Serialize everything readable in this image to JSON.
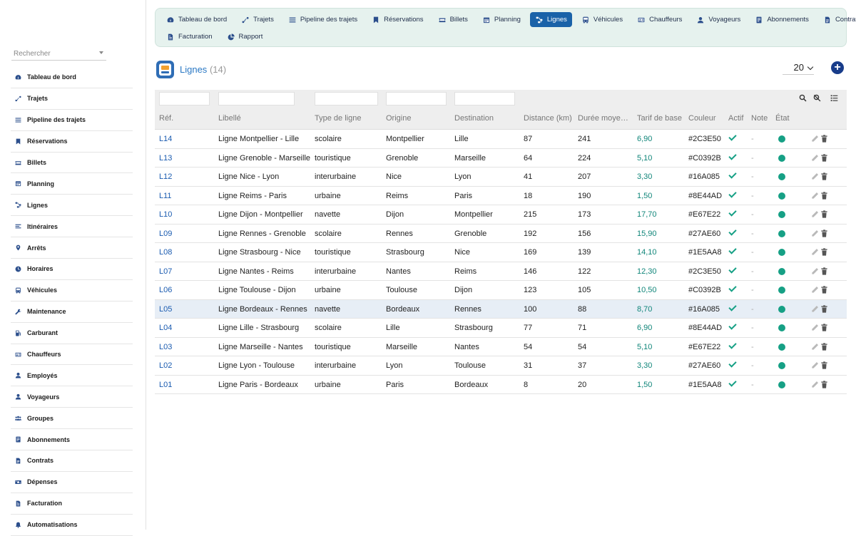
{
  "sidebar": {
    "search_placeholder": "Rechercher",
    "items": [
      {
        "label": "Tableau de bord",
        "icon": "dashboard-icon"
      },
      {
        "label": "Trajets",
        "icon": "route-icon"
      },
      {
        "label": "Pipeline des trajets",
        "icon": "pipeline-icon"
      },
      {
        "label": "Réservations",
        "icon": "bookmark-icon"
      },
      {
        "label": "Billets",
        "icon": "ticket-icon"
      },
      {
        "label": "Planning",
        "icon": "calendar-icon"
      },
      {
        "label": "Lignes",
        "icon": "lines-icon"
      },
      {
        "label": "Itinéraires",
        "icon": "itinerary-icon"
      },
      {
        "label": "Arrêts",
        "icon": "pin-icon"
      },
      {
        "label": "Horaires",
        "icon": "clock-icon"
      },
      {
        "label": "Véhicules",
        "icon": "bus-icon"
      },
      {
        "label": "Maintenance",
        "icon": "wrench-icon"
      },
      {
        "label": "Carburant",
        "icon": "fuel-icon"
      },
      {
        "label": "Chauffeurs",
        "icon": "id-card-icon"
      },
      {
        "label": "Employés",
        "icon": "user-icon"
      },
      {
        "label": "Voyageurs",
        "icon": "user-icon"
      },
      {
        "label": "Groupes",
        "icon": "users-icon"
      },
      {
        "label": "Abonnements",
        "icon": "subscription-icon"
      },
      {
        "label": "Contrats",
        "icon": "document-icon"
      },
      {
        "label": "Dépenses",
        "icon": "money-icon"
      },
      {
        "label": "Facturation",
        "icon": "invoice-icon"
      },
      {
        "label": "Automatisations",
        "icon": "bell-icon"
      }
    ]
  },
  "topnav": {
    "row1": [
      {
        "label": "Tableau de bord",
        "icon": "dashboard-icon",
        "active": false
      },
      {
        "label": "Trajets",
        "icon": "route-icon",
        "active": false
      },
      {
        "label": "Pipeline des trajets",
        "icon": "pipeline-icon",
        "active": false
      },
      {
        "label": "Réservations",
        "icon": "bookmark-icon",
        "active": false
      },
      {
        "label": "Billets",
        "icon": "ticket-icon",
        "active": false
      },
      {
        "label": "Planning",
        "icon": "calendar-icon",
        "active": false
      },
      {
        "label": "Lignes",
        "icon": "lines-icon",
        "active": true
      },
      {
        "label": "Véhicules",
        "icon": "bus-icon",
        "active": false
      },
      {
        "label": "Chauffeurs",
        "icon": "id-card-icon",
        "active": false
      },
      {
        "label": "Voyageurs",
        "icon": "user-icon",
        "active": false
      },
      {
        "label": "Abonnements",
        "icon": "subscription-icon",
        "active": false
      },
      {
        "label": "Contrats",
        "icon": "document-icon",
        "active": false
      }
    ],
    "row2": [
      {
        "label": "Facturation",
        "icon": "invoice-icon",
        "active": false
      },
      {
        "label": "Rapport",
        "icon": "pie-chart-icon",
        "active": false
      }
    ]
  },
  "page": {
    "title": "Lignes",
    "count": "(14)",
    "per_page": "20",
    "add_label": "+"
  },
  "table": {
    "columns": [
      "Réf.",
      "Libellé",
      "Type de ligne",
      "Origine",
      "Destination",
      "Distance (km)",
      "Durée moye…",
      "Tarif de base",
      "Couleur",
      "Actif",
      "Note",
      "État"
    ],
    "highlight_row": "L05",
    "status_color": "#16a085",
    "accent_color": "#1a62a8",
    "rows": [
      {
        "ref": "L14",
        "libelle": "Ligne Montpellier - Lille",
        "type": "scolaire",
        "origine": "Montpellier",
        "destination": "Lille",
        "distance": "87",
        "duree": "241",
        "tarif": "6,90",
        "couleur": "#2C3E50",
        "note": "-"
      },
      {
        "ref": "L13",
        "libelle": "Ligne Grenoble - Marseille",
        "type": "touristique",
        "origine": "Grenoble",
        "destination": "Marseille",
        "distance": "64",
        "duree": "224",
        "tarif": "5,10",
        "couleur": "#C0392B",
        "note": "-"
      },
      {
        "ref": "L12",
        "libelle": "Ligne Nice - Lyon",
        "type": "interurbaine",
        "origine": "Nice",
        "destination": "Lyon",
        "distance": "41",
        "duree": "207",
        "tarif": "3,30",
        "couleur": "#16A085",
        "note": "-"
      },
      {
        "ref": "L11",
        "libelle": "Ligne Reims - Paris",
        "type": "urbaine",
        "origine": "Reims",
        "destination": "Paris",
        "distance": "18",
        "duree": "190",
        "tarif": "1,50",
        "couleur": "#8E44AD",
        "note": "-"
      },
      {
        "ref": "L10",
        "libelle": "Ligne Dijon - Montpellier",
        "type": "navette",
        "origine": "Dijon",
        "destination": "Montpellier",
        "distance": "215",
        "duree": "173",
        "tarif": "17,70",
        "couleur": "#E67E22",
        "note": "-"
      },
      {
        "ref": "L09",
        "libelle": "Ligne Rennes - Grenoble",
        "type": "scolaire",
        "origine": "Rennes",
        "destination": "Grenoble",
        "distance": "192",
        "duree": "156",
        "tarif": "15,90",
        "couleur": "#27AE60",
        "note": "-"
      },
      {
        "ref": "L08",
        "libelle": "Ligne Strasbourg - Nice",
        "type": "touristique",
        "origine": "Strasbourg",
        "destination": "Nice",
        "distance": "169",
        "duree": "139",
        "tarif": "14,10",
        "couleur": "#1E5AA8",
        "note": "-"
      },
      {
        "ref": "L07",
        "libelle": "Ligne Nantes - Reims",
        "type": "interurbaine",
        "origine": "Nantes",
        "destination": "Reims",
        "distance": "146",
        "duree": "122",
        "tarif": "12,30",
        "couleur": "#2C3E50",
        "note": "-"
      },
      {
        "ref": "L06",
        "libelle": "Ligne Toulouse - Dijon",
        "type": "urbaine",
        "origine": "Toulouse",
        "destination": "Dijon",
        "distance": "123",
        "duree": "105",
        "tarif": "10,50",
        "couleur": "#C0392B",
        "note": "-"
      },
      {
        "ref": "L05",
        "libelle": "Ligne Bordeaux - Rennes",
        "type": "navette",
        "origine": "Bordeaux",
        "destination": "Rennes",
        "distance": "100",
        "duree": "88",
        "tarif": "8,70",
        "couleur": "#16A085",
        "note": "-"
      },
      {
        "ref": "L04",
        "libelle": "Ligne Lille - Strasbourg",
        "type": "scolaire",
        "origine": "Lille",
        "destination": "Strasbourg",
        "distance": "77",
        "duree": "71",
        "tarif": "6,90",
        "couleur": "#8E44AD",
        "note": "-"
      },
      {
        "ref": "L03",
        "libelle": "Ligne Marseille - Nantes",
        "type": "touristique",
        "origine": "Marseille",
        "destination": "Nantes",
        "distance": "54",
        "duree": "54",
        "tarif": "5,10",
        "couleur": "#E67E22",
        "note": "-"
      },
      {
        "ref": "L02",
        "libelle": "Ligne Lyon - Toulouse",
        "type": "interurbaine",
        "origine": "Lyon",
        "destination": "Toulouse",
        "distance": "31",
        "duree": "37",
        "tarif": "3,30",
        "couleur": "#27AE60",
        "note": "-"
      },
      {
        "ref": "L01",
        "libelle": "Ligne Paris - Bordeaux",
        "type": "urbaine",
        "origine": "Paris",
        "destination": "Bordeaux",
        "distance": "8",
        "duree": "20",
        "tarif": "1,50",
        "couleur": "#1E5AA8",
        "note": "-"
      }
    ]
  }
}
